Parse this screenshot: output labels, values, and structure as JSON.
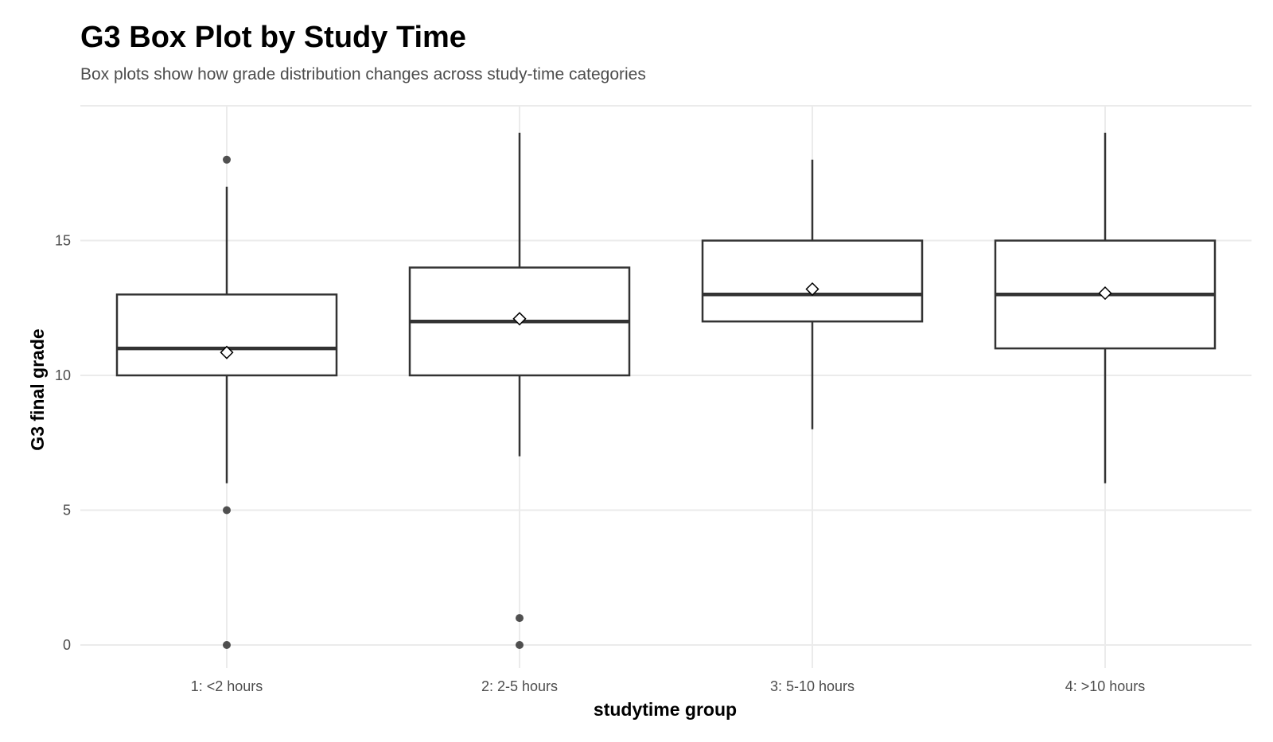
{
  "chart_data": {
    "type": "box",
    "title": "G3 Box Plot by Study Time",
    "subtitle": "Box plots show how grade distribution changes across study-time categories",
    "xlabel": "studytime group",
    "ylabel": "G3 final grade",
    "ylim": [
      -0.9,
      20
    ],
    "yticks": [
      0,
      5,
      10,
      15
    ],
    "grid": true,
    "categories": [
      "1: <2 hours",
      "2: 2-5 hours",
      "3: 5-10 hours",
      "4: >10 hours"
    ],
    "boxes": [
      {
        "whisker_low": 6,
        "q1": 10,
        "median": 11,
        "q3": 13,
        "whisker_high": 17,
        "mean": 10.85,
        "outliers": [
          18,
          5,
          0
        ]
      },
      {
        "whisker_low": 7,
        "q1": 10,
        "median": 12,
        "q3": 14,
        "whisker_high": 19,
        "mean": 12.1,
        "outliers": [
          1,
          0
        ]
      },
      {
        "whisker_low": 8,
        "q1": 12,
        "median": 13,
        "q3": 15,
        "whisker_high": 18,
        "mean": 13.2,
        "outliers": []
      },
      {
        "whisker_low": 6,
        "q1": 11,
        "median": 13,
        "q3": 15,
        "whisker_high": 19,
        "mean": 13.05,
        "outliers": []
      }
    ],
    "colors": {
      "box_stroke": "#333333",
      "outlier": "#333333",
      "mean_fill": "#ffffff",
      "grid": "#ebebeb"
    }
  }
}
